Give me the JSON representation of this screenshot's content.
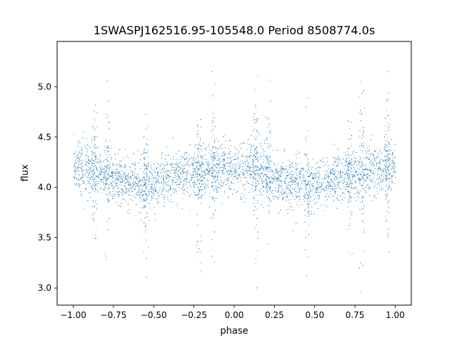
{
  "chart_data": {
    "type": "scatter",
    "title": "1SWASPJ162516.95-105548.0 Period 8508774.0s",
    "xlabel": "phase",
    "ylabel": "flux",
    "xlim": [
      -1.1,
      1.1
    ],
    "ylim": [
      2.83,
      5.45
    ],
    "grid": false,
    "marker_color": "#1f77b4",
    "x_ticks": [
      -1.0,
      -0.75,
      -0.5,
      -0.25,
      0.0,
      0.25,
      0.5,
      0.75,
      1.0
    ],
    "x_tick_labels": [
      "−1.00",
      "−0.75",
      "−0.50",
      "−0.25",
      "0.00",
      "0.25",
      "0.50",
      "0.75",
      "1.00"
    ],
    "y_ticks": [
      3.0,
      3.5,
      4.0,
      4.5,
      5.0
    ],
    "y_tick_labels": [
      "3.0",
      "3.5",
      "4.0",
      "4.5",
      "5.0"
    ],
    "series": [
      {
        "phase_range": [
          -1.0,
          1.0
        ],
        "mean_flux_profile": [
          {
            "x": -1.0,
            "y": 4.2
          },
          {
            "x": -0.875,
            "y": 4.18
          },
          {
            "x": -0.75,
            "y": 4.1
          },
          {
            "x": -0.625,
            "y": 4.05
          },
          {
            "x": -0.55,
            "y": 4.0
          },
          {
            "x": -0.5,
            "y": 4.03
          },
          {
            "x": -0.375,
            "y": 4.1
          },
          {
            "x": -0.25,
            "y": 4.15
          },
          {
            "x": -0.125,
            "y": 4.18
          },
          {
            "x": 0.0,
            "y": 4.2
          },
          {
            "x": 0.125,
            "y": 4.18
          },
          {
            "x": 0.25,
            "y": 4.1
          },
          {
            "x": 0.375,
            "y": 4.05
          },
          {
            "x": 0.45,
            "y": 4.0
          },
          {
            "x": 0.5,
            "y": 4.03
          },
          {
            "x": 0.625,
            "y": 4.1
          },
          {
            "x": 0.75,
            "y": 4.15
          },
          {
            "x": 0.875,
            "y": 4.18
          },
          {
            "x": 1.0,
            "y": 4.2
          }
        ],
        "scatter_half_width": 0.22,
        "high_variance_phases": [
          -0.87,
          -0.79,
          -0.55,
          -0.22,
          -0.13,
          0.13,
          0.21,
          0.45,
          0.72,
          0.79,
          0.95
        ],
        "flux_extent": [
          2.95,
          5.33
        ]
      }
    ]
  }
}
